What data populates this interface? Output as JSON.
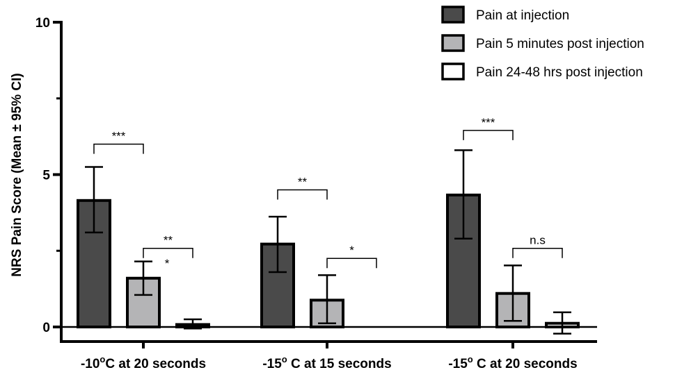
{
  "chart_data": {
    "type": "bar",
    "ylabel": "NRS Pain Score (Mean ± 95% CI)",
    "ylim": [
      0,
      10
    ],
    "yticks": [
      0,
      5,
      10
    ],
    "categories": [
      {
        "pre": "-10",
        "sup": "o",
        "post": "C at 20 seconds"
      },
      {
        "pre": "-15",
        "sup": "o",
        "post": " C at 15 seconds"
      },
      {
        "pre": "-15",
        "sup": "o",
        "post": " C at 20 seconds"
      }
    ],
    "series": [
      {
        "name": "Pain at injection",
        "color": "#4a4a4a",
        "values": [
          4.15,
          2.72,
          4.33
        ],
        "ci_low": [
          3.1,
          1.8,
          2.9
        ],
        "ci_high": [
          5.25,
          3.62,
          5.8
        ]
      },
      {
        "name": "Pain 5 minutes post injection",
        "color": "#b4b4b6",
        "values": [
          1.6,
          0.88,
          1.1
        ],
        "ci_low": [
          1.05,
          0.12,
          0.2
        ],
        "ci_high": [
          2.15,
          1.7,
          2.02
        ]
      },
      {
        "name": "Pain 24-48 hrs post injection",
        "color": "#ffffff",
        "values": [
          0.08,
          0.0,
          0.12
        ],
        "ci_low": [
          -0.05,
          0.0,
          -0.22
        ],
        "ci_high": [
          0.25,
          0.0,
          0.48
        ]
      }
    ],
    "legend_position": "top-right",
    "annotations": [
      {
        "label": "***",
        "category": 0,
        "from": 0,
        "to": 1,
        "y": 6.0
      },
      {
        "label": "**",
        "category": 0,
        "from": 1,
        "to": 2,
        "y": 2.58
      },
      {
        "label": "*",
        "category": 0,
        "series": 1,
        "y": 2.0
      },
      {
        "label": "**",
        "category": 1,
        "from": 0,
        "to": 1,
        "y": 4.5
      },
      {
        "label": "*",
        "category": 1,
        "from": 1,
        "to": 2,
        "y": 2.25
      },
      {
        "label": "***",
        "category": 2,
        "from": 0,
        "to": 1,
        "y": 6.45
      },
      {
        "label": "n.s",
        "category": 2,
        "from": 1,
        "to": 2,
        "y": 2.58
      }
    ]
  }
}
